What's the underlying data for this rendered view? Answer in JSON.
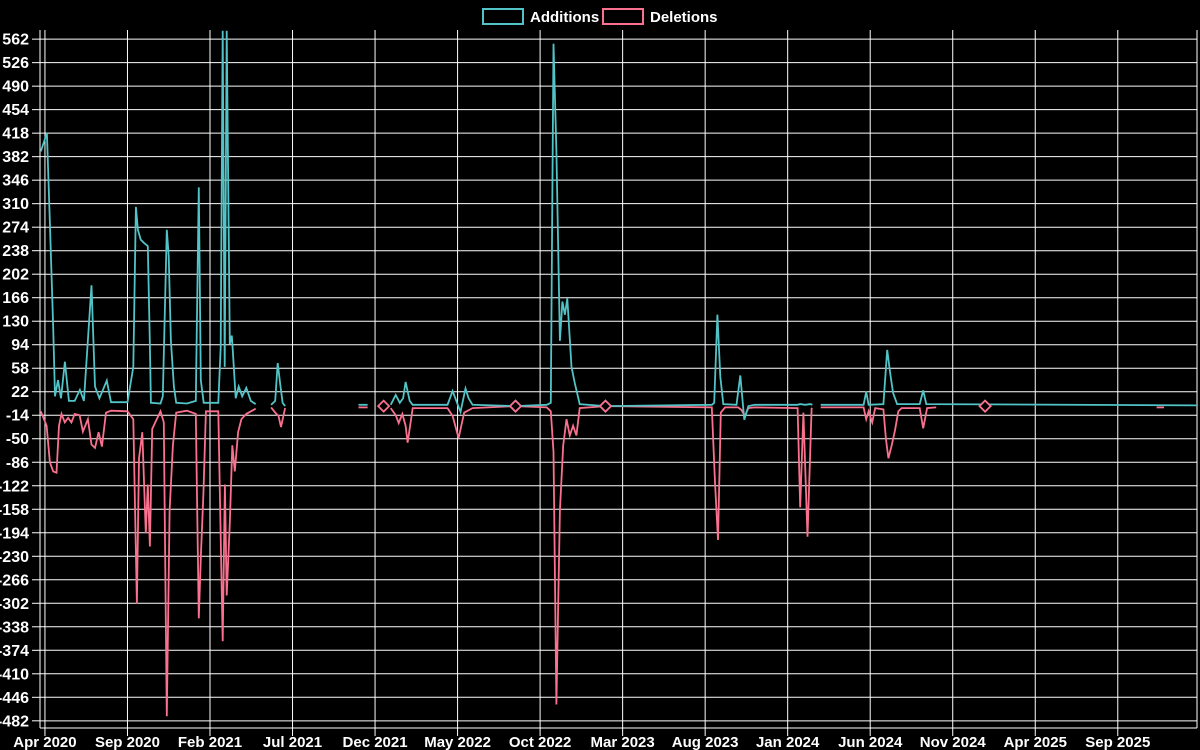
{
  "chart_data": {
    "type": "line",
    "title": "",
    "xlabel": "",
    "ylabel": "",
    "background_color": "#000000",
    "grid": true,
    "grid_color": "#fdfdfd",
    "text_color": "#ffffff",
    "legend_position": "top-center",
    "legend": [
      {
        "label": "Additions",
        "color": "#52c3c6"
      },
      {
        "label": "Deletions",
        "color": "#f9718e"
      }
    ],
    "x_unit": "months since Apr 2020, weekly data points",
    "xlim_months": [
      -0.3,
      69.8
    ],
    "ylim": [
      -493,
      576
    ],
    "y_ticks": [
      562,
      526,
      490,
      454,
      418,
      382,
      346,
      310,
      274,
      238,
      202,
      166,
      130,
      94,
      58,
      22,
      -14,
      -50,
      -86,
      -122,
      -158,
      -194,
      -230,
      -266,
      -302,
      -338,
      -374,
      -410,
      -446,
      -482
    ],
    "x_ticks": [
      {
        "t": 0,
        "label": "Apr 2020"
      },
      {
        "t": 5,
        "label": "Sep 2020"
      },
      {
        "t": 10,
        "label": "Feb 2021"
      },
      {
        "t": 15,
        "label": "Jul 2021"
      },
      {
        "t": 20,
        "label": "Dec 2021"
      },
      {
        "t": 25,
        "label": "May 2022"
      },
      {
        "t": 30,
        "label": "Oct 2022"
      },
      {
        "t": 35,
        "label": "Mar 2023"
      },
      {
        "t": 40,
        "label": "Aug 2023"
      },
      {
        "t": 45,
        "label": "Jan 2024"
      },
      {
        "t": 50,
        "label": "Jun 2024"
      },
      {
        "t": 55,
        "label": "Nov 2024"
      },
      {
        "t": 60,
        "label": "Apr 2025"
      },
      {
        "t": 65,
        "label": "Sep 2025"
      }
    ],
    "series": [
      {
        "name": "Additions",
        "color": "#52c3c6",
        "segments": [
          [
            [
              -0.25,
              390
            ],
            [
              0.12,
              418
            ],
            [
              0.3,
              280
            ],
            [
              0.5,
              120
            ],
            [
              0.61,
              15
            ],
            [
              0.79,
              40
            ],
            [
              0.97,
              12
            ],
            [
              1.21,
              68
            ],
            [
              1.45,
              8
            ],
            [
              1.8,
              8
            ],
            [
              2.12,
              25
            ],
            [
              2.36,
              8
            ],
            [
              2.82,
              185
            ],
            [
              3.03,
              30
            ],
            [
              3.3,
              12
            ],
            [
              3.75,
              39
            ],
            [
              4.0,
              6
            ],
            [
              5.0,
              6
            ],
            [
              5.35,
              60
            ],
            [
              5.51,
              305
            ],
            [
              5.63,
              270
            ],
            [
              5.8,
              255
            ],
            [
              6.0,
              250
            ],
            [
              6.23,
              245
            ],
            [
              6.35,
              100
            ],
            [
              6.42,
              5
            ],
            [
              7.0,
              4
            ],
            [
              7.14,
              15
            ],
            [
              7.38,
              270
            ],
            [
              7.5,
              230
            ],
            [
              7.63,
              100
            ],
            [
              7.81,
              30
            ],
            [
              7.95,
              5
            ],
            [
              8.6,
              4
            ],
            [
              9.14,
              8
            ],
            [
              9.32,
              335
            ],
            [
              9.44,
              40
            ],
            [
              9.62,
              5
            ],
            [
              10.5,
              5
            ],
            [
              10.65,
              90
            ],
            [
              10.77,
              575
            ],
            [
              10.89,
              60
            ],
            [
              11.01,
              575
            ],
            [
              11.2,
              95
            ],
            [
              11.32,
              108
            ],
            [
              11.38,
              85
            ],
            [
              11.56,
              12
            ],
            [
              11.74,
              30
            ],
            [
              11.95,
              15
            ],
            [
              12.2,
              28
            ],
            [
              12.47,
              8
            ],
            [
              12.77,
              3
            ]
          ],
          [
            [
              13.7,
              2
            ],
            [
              13.95,
              8
            ],
            [
              14.1,
              66
            ],
            [
              14.25,
              35
            ],
            [
              14.4,
              5
            ],
            [
              14.55,
              0
            ]
          ],
          [
            [
              19.0,
              2
            ],
            [
              19.55,
              2
            ]
          ],
          [
            [
              20.95,
              2
            ],
            [
              21.25,
              17
            ],
            [
              21.5,
              5
            ],
            [
              21.7,
              12
            ],
            [
              21.85,
              37
            ],
            [
              22.1,
              8
            ],
            [
              22.28,
              2
            ],
            [
              24.39,
              2
            ],
            [
              24.7,
              23
            ],
            [
              25.18,
              -9
            ],
            [
              25.48,
              27
            ],
            [
              25.67,
              12
            ],
            [
              25.91,
              2
            ],
            [
              28.51,
              0
            ],
            [
              30.4,
              2
            ],
            [
              30.65,
              5
            ],
            [
              30.81,
              555
            ],
            [
              30.99,
              390
            ],
            [
              31.2,
              100
            ],
            [
              31.35,
              160
            ],
            [
              31.5,
              140
            ],
            [
              31.65,
              165
            ],
            [
              31.9,
              60
            ],
            [
              32.1,
              35
            ],
            [
              32.4,
              3
            ],
            [
              33.96,
              0
            ],
            [
              40.4,
              2
            ],
            [
              40.55,
              5
            ],
            [
              40.74,
              140
            ],
            [
              40.92,
              45
            ],
            [
              41.1,
              3
            ],
            [
              41.9,
              2
            ],
            [
              42.13,
              47
            ],
            [
              42.37,
              -21
            ],
            [
              42.62,
              0
            ],
            [
              43.0,
              2
            ],
            [
              45.6,
              2
            ],
            [
              45.76,
              3
            ],
            [
              46.06,
              2
            ],
            [
              46.37,
              3
            ],
            [
              46.5,
              2
            ]
          ],
          [
            [
              47.0,
              2
            ],
            [
              49.6,
              2
            ],
            [
              49.76,
              22
            ],
            [
              49.9,
              2
            ],
            [
              50.8,
              3
            ],
            [
              51.03,
              86
            ],
            [
              51.21,
              50
            ],
            [
              51.39,
              20
            ],
            [
              51.63,
              3
            ],
            [
              53.0,
              3
            ],
            [
              53.21,
              24
            ],
            [
              53.4,
              3
            ],
            [
              69.8,
              1
            ]
          ]
        ]
      },
      {
        "name": "Deletions",
        "color": "#f9718e",
        "segments": [
          [
            [
              -0.25,
              -8
            ],
            [
              0.1,
              -30
            ],
            [
              0.3,
              -86
            ],
            [
              0.5,
              -100
            ],
            [
              0.7,
              -102
            ],
            [
              0.85,
              -30
            ],
            [
              1.0,
              -12
            ],
            [
              1.2,
              -25
            ],
            [
              1.4,
              -18
            ],
            [
              1.6,
              -25
            ],
            [
              1.8,
              -12
            ],
            [
              2.1,
              -14
            ],
            [
              2.3,
              -39
            ],
            [
              2.6,
              -20
            ],
            [
              2.82,
              -59
            ],
            [
              3.03,
              -64
            ],
            [
              3.25,
              -40
            ],
            [
              3.45,
              -62
            ],
            [
              3.7,
              -10
            ],
            [
              4.0,
              -7
            ],
            [
              5.0,
              -8
            ],
            [
              5.35,
              -20
            ],
            [
              5.57,
              -302
            ],
            [
              5.7,
              -80
            ],
            [
              5.9,
              -40
            ],
            [
              6.11,
              -195
            ],
            [
              6.23,
              -120
            ],
            [
              6.36,
              -215
            ],
            [
              6.5,
              -35
            ],
            [
              7.0,
              -8
            ],
            [
              7.2,
              -25
            ],
            [
              7.38,
              -475
            ],
            [
              7.55,
              -160
            ],
            [
              7.75,
              -60
            ],
            [
              7.95,
              -10
            ],
            [
              8.6,
              -7
            ],
            [
              9.14,
              -12
            ],
            [
              9.32,
              -325
            ],
            [
              9.45,
              -228
            ],
            [
              9.6,
              -135
            ],
            [
              9.75,
              -8
            ],
            [
              10.5,
              -8
            ],
            [
              10.77,
              -360
            ],
            [
              10.9,
              -120
            ],
            [
              11.01,
              -290
            ],
            [
              11.2,
              -180
            ],
            [
              11.35,
              -60
            ],
            [
              11.5,
              -100
            ],
            [
              11.7,
              -40
            ],
            [
              11.9,
              -20
            ],
            [
              12.2,
              -12
            ],
            [
              12.77,
              -4
            ]
          ],
          [
            [
              13.7,
              -2
            ],
            [
              13.95,
              -10
            ],
            [
              14.15,
              -15
            ],
            [
              14.3,
              -32
            ],
            [
              14.45,
              -15
            ],
            [
              14.55,
              -3
            ]
          ],
          [
            [
              19.0,
              -2
            ],
            [
              19.55,
              -2
            ]
          ],
          [
            [
              20.95,
              -3
            ],
            [
              21.25,
              -14
            ],
            [
              21.43,
              -26
            ],
            [
              21.65,
              -12
            ],
            [
              21.85,
              -30
            ],
            [
              21.97,
              -56
            ],
            [
              22.28,
              -3
            ],
            [
              24.39,
              -3
            ],
            [
              24.7,
              -15
            ],
            [
              25.06,
              -49
            ],
            [
              25.4,
              -10
            ],
            [
              25.91,
              -3
            ],
            [
              28.51,
              0
            ],
            [
              30.4,
              -2
            ],
            [
              30.65,
              -8
            ],
            [
              30.81,
              -70
            ],
            [
              30.99,
              -457
            ],
            [
              31.2,
              -160
            ],
            [
              31.4,
              -60
            ],
            [
              31.6,
              -20
            ],
            [
              31.8,
              -45
            ],
            [
              32.0,
              -30
            ],
            [
              32.2,
              -45
            ],
            [
              32.4,
              -3
            ],
            [
              33.96,
              0
            ],
            [
              40.4,
              -2
            ],
            [
              40.6,
              -120
            ],
            [
              40.78,
              -205
            ],
            [
              40.95,
              -10
            ],
            [
              41.2,
              -2
            ],
            [
              42.0,
              -2
            ],
            [
              42.2,
              -6
            ],
            [
              42.4,
              -15
            ],
            [
              42.62,
              -3
            ],
            [
              43.0,
              -2
            ],
            [
              45.6,
              -3
            ],
            [
              45.76,
              -155
            ],
            [
              45.95,
              -10
            ],
            [
              46.2,
              -200
            ],
            [
              46.45,
              -4
            ],
            [
              46.5,
              -3
            ]
          ],
          [
            [
              47.0,
              -2
            ],
            [
              49.6,
              -2
            ],
            [
              49.76,
              -20
            ],
            [
              49.9,
              -8
            ],
            [
              50.12,
              -25
            ],
            [
              50.3,
              -3
            ],
            [
              50.8,
              -5
            ],
            [
              50.95,
              -50
            ],
            [
              51.1,
              -80
            ],
            [
              51.3,
              -60
            ],
            [
              51.5,
              -37
            ],
            [
              51.7,
              -8
            ],
            [
              51.9,
              -3
            ],
            [
              53.0,
              -3
            ],
            [
              53.21,
              -34
            ],
            [
              53.45,
              -3
            ],
            [
              54.0,
              -2
            ]
          ],
          [
            [
              67.35,
              -2
            ],
            [
              67.8,
              -2
            ]
          ]
        ]
      }
    ],
    "isolated_point_markers": [
      {
        "series": "Deletions",
        "t": 20.52,
        "value": 0
      },
      {
        "series": "Additions",
        "t": 28.51,
        "value": 0
      },
      {
        "series": "Deletions",
        "t": 28.51,
        "value": 0
      },
      {
        "series": "Additions",
        "t": 33.96,
        "value": 0
      },
      {
        "series": "Deletions",
        "t": 33.96,
        "value": 0
      },
      {
        "series": "Additions",
        "t": 56.96,
        "value": 0
      },
      {
        "series": "Deletions",
        "t": 56.96,
        "value": 0
      }
    ]
  }
}
